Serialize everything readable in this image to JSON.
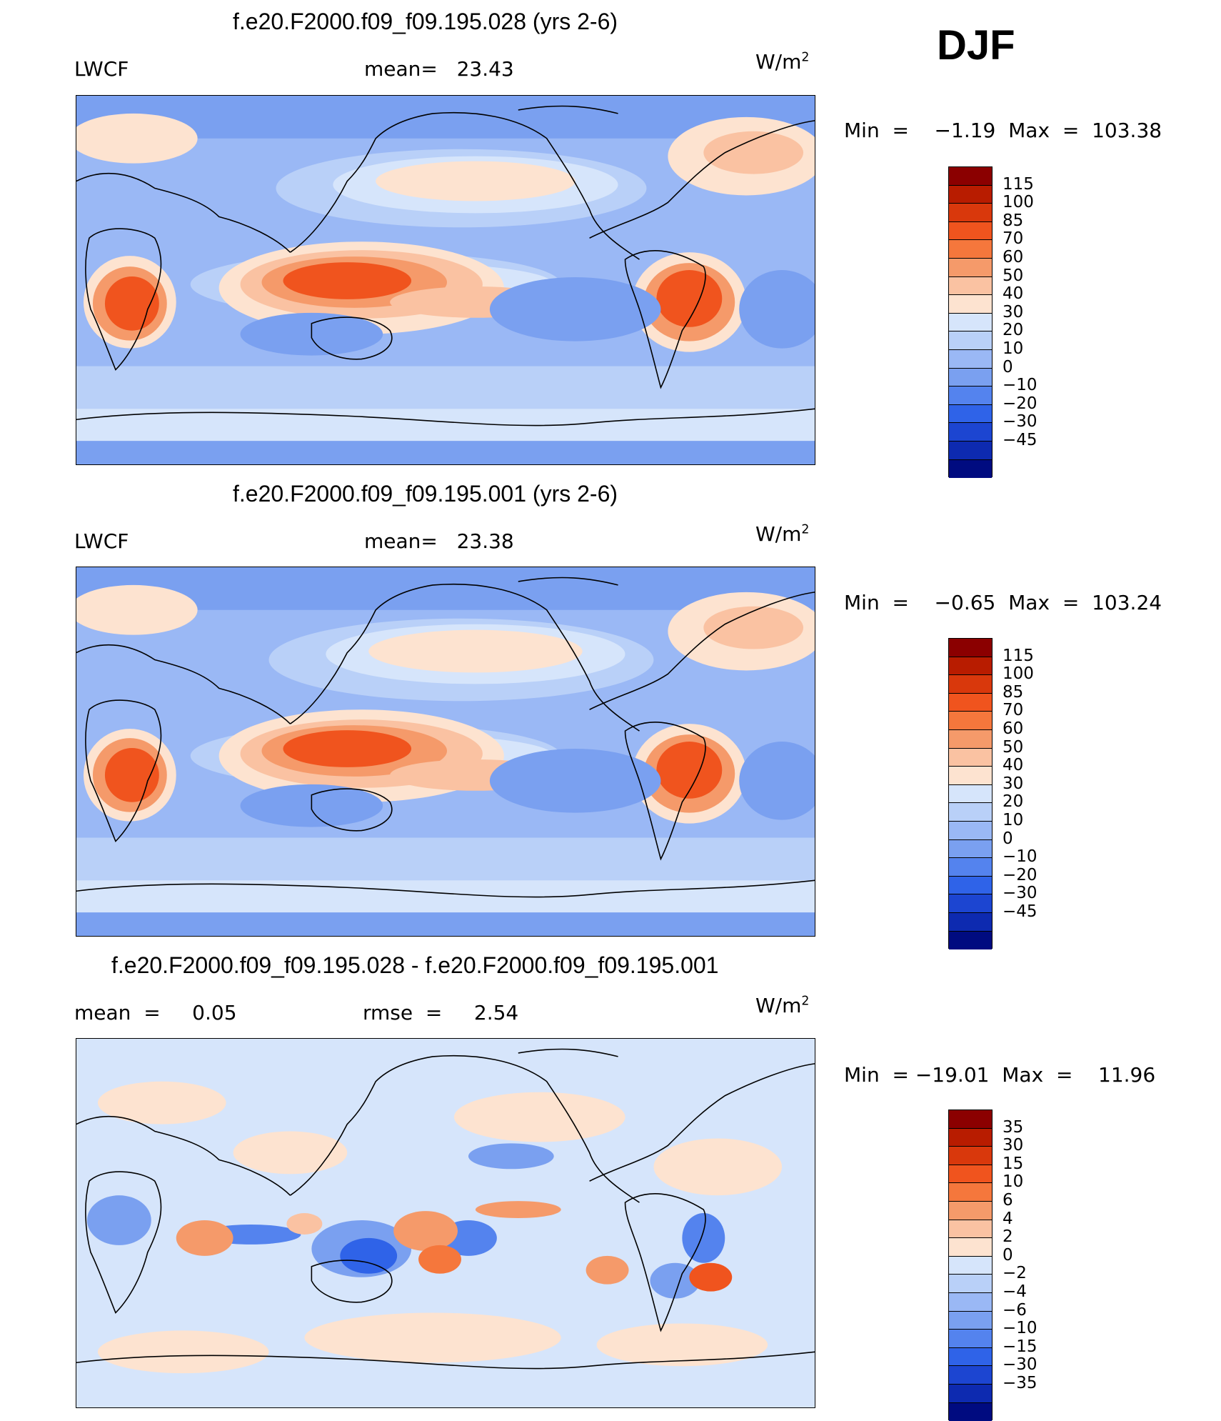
{
  "season": "DJF",
  "panels": [
    {
      "title": "f.e20.F2000.f09_f09.195.028 (yrs 2-6)",
      "left_label": "LWCF",
      "mean_text": "mean=   23.43",
      "units": "W/m",
      "units_sup": "2",
      "minmax": "Min  =    −1.19  Max  =  103.38"
    },
    {
      "title": "f.e20.F2000.f09_f09.195.001 (yrs 2-6)",
      "left_label": "LWCF",
      "mean_text": "mean=   23.38",
      "units": "W/m",
      "units_sup": "2",
      "minmax": "Min  =    −0.65  Max  =  103.24"
    },
    {
      "title": "f.e20.F2000.f09_f09.195.028 - f.e20.F2000.f09_f09.195.001",
      "mean_text": "mean  =     0.05",
      "rmse_text": "rmse  =     2.54",
      "units": "W/m",
      "units_sup": "2",
      "minmax": "Min  = −19.01  Max  =    11.96"
    }
  ],
  "colorbars": {
    "main": {
      "colors": [
        "#8b0000",
        "#b81c00",
        "#d9380c",
        "#f0541e",
        "#f5773c",
        "#f59a6a",
        "#fac2a2",
        "#fde3d0",
        "#d6e5fb",
        "#b9d0f8",
        "#9ab8f5",
        "#7aa0f0",
        "#5483ee",
        "#2f63e8",
        "#1c45d1",
        "#0d2ab0",
        "#000b80"
      ],
      "labels": [
        "115",
        "100",
        "85",
        "70",
        "60",
        "50",
        "40",
        "30",
        "20",
        "10",
        "0",
        "−10",
        "−20",
        "−30",
        "−45"
      ]
    },
    "diff": {
      "colors": [
        "#8b0000",
        "#b81c00",
        "#d9380c",
        "#f0541e",
        "#f5773c",
        "#f59a6a",
        "#fac2a2",
        "#fde3d0",
        "#d6e5fb",
        "#b9d0f8",
        "#9ab8f5",
        "#7aa0f0",
        "#5483ee",
        "#2f63e8",
        "#1c45d1",
        "#0d2ab0",
        "#000b80"
      ],
      "labels": [
        "35",
        "30",
        "15",
        "10",
        "6",
        "4",
        "2",
        "0",
        "−2",
        "−4",
        "−6",
        "−10",
        "−15",
        "−30",
        "−35"
      ]
    }
  },
  "chart_data": [
    {
      "type": "heatmap",
      "title": "f.e20.F2000.f09_f09.195.028 (yrs 2-6)",
      "variable": "LWCF",
      "units": "W/m2",
      "mean": 23.43,
      "min": -1.19,
      "max": 103.38,
      "levels": [
        -45,
        -30,
        -20,
        -10,
        0,
        10,
        20,
        30,
        40,
        50,
        60,
        70,
        85,
        100,
        115
      ]
    },
    {
      "type": "heatmap",
      "title": "f.e20.F2000.f09_f09.195.001 (yrs 2-6)",
      "variable": "LWCF",
      "units": "W/m2",
      "mean": 23.38,
      "min": -0.65,
      "max": 103.24,
      "levels": [
        -45,
        -30,
        -20,
        -10,
        0,
        10,
        20,
        30,
        40,
        50,
        60,
        70,
        85,
        100,
        115
      ]
    },
    {
      "type": "heatmap",
      "title": "f.e20.F2000.f09_f09.195.028 - f.e20.F2000.f09_f09.195.001",
      "units": "W/m2",
      "mean": 0.05,
      "rmse": 2.54,
      "min": -19.01,
      "max": 11.96,
      "levels": [
        -35,
        -30,
        -15,
        -10,
        -6,
        -4,
        -2,
        0,
        2,
        4,
        6,
        10,
        15,
        30,
        35
      ]
    }
  ]
}
